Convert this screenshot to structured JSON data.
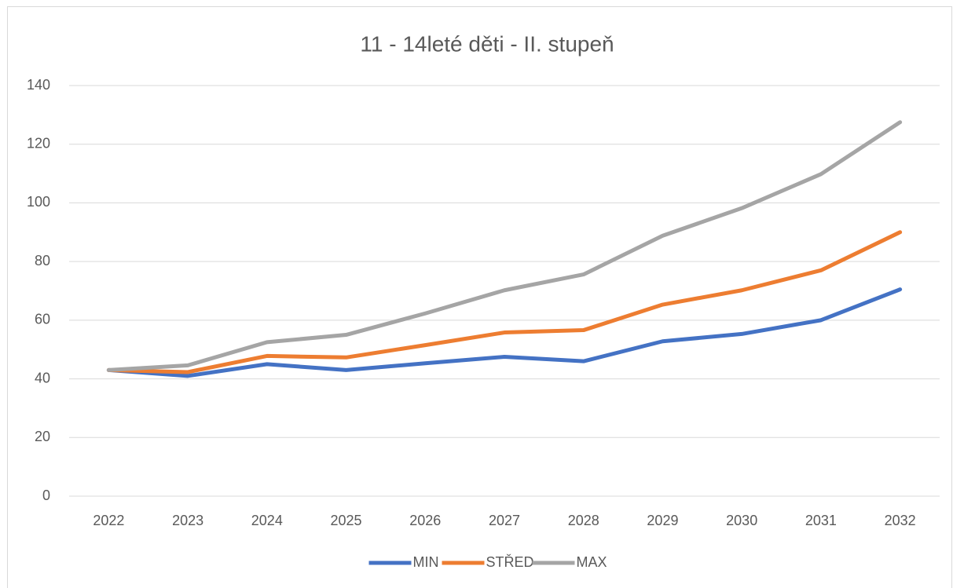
{
  "chart_data": {
    "type": "line",
    "title": "11 - 14leté děti - II. stupeň",
    "categories": [
      "2022",
      "2023",
      "2024",
      "2025",
      "2026",
      "2027",
      "2028",
      "2029",
      "2030",
      "2031",
      "2032"
    ],
    "series": [
      {
        "name": "MIN",
        "color": "#4472c4",
        "values": [
          43,
          41,
          45,
          43,
          45.3,
          47.5,
          46,
          52.8,
          55.3,
          60,
          70.5
        ]
      },
      {
        "name": "STŘED",
        "color": "#ed7d31",
        "values": [
          43,
          42.3,
          47.8,
          47.3,
          51.5,
          55.8,
          56.6,
          65.3,
          70.2,
          77,
          90
        ]
      },
      {
        "name": "MAX",
        "color": "#a5a5a5",
        "values": [
          43,
          44.6,
          52.5,
          55,
          62.3,
          70.2,
          75.6,
          88.8,
          98.2,
          109.8,
          127.5
        ]
      }
    ],
    "ylim": [
      0,
      140
    ],
    "yticks": [
      0,
      20,
      40,
      60,
      80,
      100,
      120,
      140
    ],
    "grid": true,
    "legend": "bottom"
  }
}
